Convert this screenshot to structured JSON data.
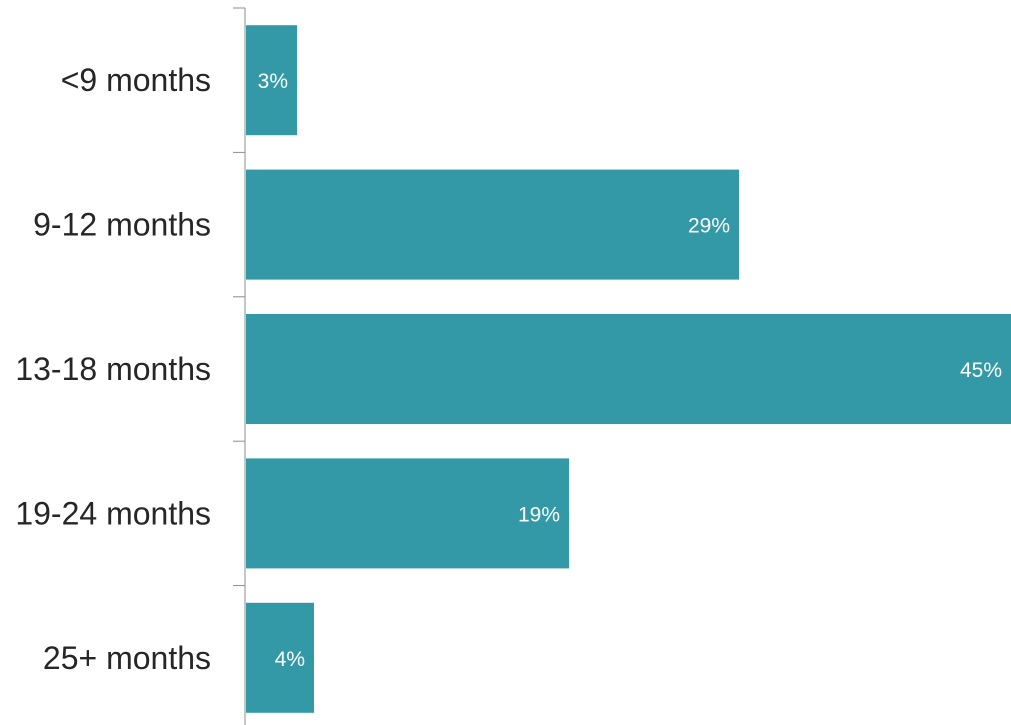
{
  "chart_data": {
    "type": "bar",
    "orientation": "horizontal",
    "categories": [
      "<9 months",
      "9-12 months",
      "13-18 months",
      "19-24 months",
      "25+ months"
    ],
    "values": [
      3,
      29,
      45,
      19,
      4
    ],
    "value_labels": [
      "3%",
      "29%",
      "45%",
      "19%",
      "4%"
    ],
    "unit": "%",
    "xlim": [
      0,
      45
    ],
    "bar_color": "#3399a6",
    "grid": false,
    "legend": "none"
  }
}
